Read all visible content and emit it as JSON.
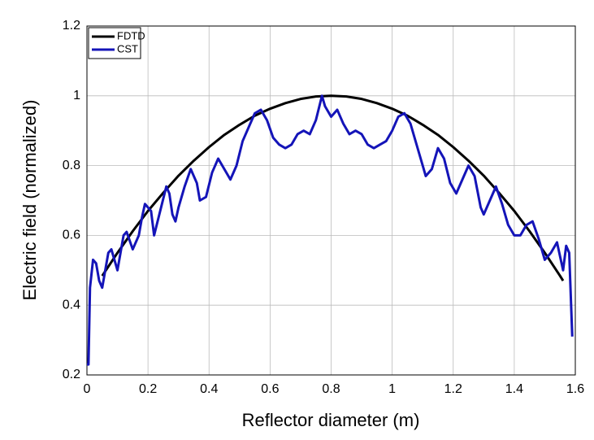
{
  "chart_data": {
    "type": "line",
    "xlabel": "Reflector diameter (m)",
    "ylabel": "Electric field (normalized)",
    "xlim": [
      0,
      1.6
    ],
    "xticks": [
      0,
      0.2,
      0.4,
      0.6,
      0.8,
      1,
      1.2,
      1.4,
      1.6
    ],
    "ylim": [
      0.2,
      1.2
    ],
    "yticks": [
      0.2,
      0.4,
      0.6,
      0.8,
      1,
      1.2
    ],
    "grid": true,
    "legend": "upper-left",
    "series": [
      {
        "name": "FDTD",
        "color": "#000000",
        "x": [
          0.05,
          0.1,
          0.15,
          0.2,
          0.25,
          0.3,
          0.35,
          0.4,
          0.45,
          0.5,
          0.55,
          0.6,
          0.65,
          0.7,
          0.75,
          0.8,
          0.85,
          0.9,
          0.95,
          1.0,
          1.05,
          1.1,
          1.15,
          1.2,
          1.25,
          1.3,
          1.35,
          1.4,
          1.45,
          1.5,
          1.55,
          1.56
        ],
        "values": [
          0.484,
          0.55,
          0.612,
          0.67,
          0.722,
          0.771,
          0.814,
          0.853,
          0.888,
          0.917,
          0.943,
          0.963,
          0.979,
          0.991,
          0.998,
          1,
          0.998,
          0.991,
          0.979,
          0.963,
          0.943,
          0.917,
          0.888,
          0.853,
          0.814,
          0.771,
          0.722,
          0.67,
          0.612,
          0.55,
          0.484,
          0.47
        ]
      },
      {
        "name": "CST",
        "color": "#1414b8",
        "x": [
          0,
          0.005,
          0.01,
          0.02,
          0.03,
          0.04,
          0.05,
          0.06,
          0.07,
          0.08,
          0.09,
          0.1,
          0.12,
          0.13,
          0.15,
          0.17,
          0.18,
          0.19,
          0.21,
          0.22,
          0.24,
          0.26,
          0.27,
          0.28,
          0.29,
          0.3,
          0.32,
          0.34,
          0.36,
          0.37,
          0.39,
          0.41,
          0.43,
          0.45,
          0.47,
          0.49,
          0.51,
          0.53,
          0.55,
          0.57,
          0.59,
          0.61,
          0.63,
          0.65,
          0.67,
          0.69,
          0.71,
          0.73,
          0.75,
          0.77,
          0.78,
          0.8,
          0.82,
          0.84,
          0.86,
          0.88,
          0.9,
          0.92,
          0.94,
          0.96,
          0.98,
          1.0,
          1.02,
          1.04,
          1.06,
          1.08,
          1.1,
          1.11,
          1.13,
          1.15,
          1.17,
          1.19,
          1.21,
          1.23,
          1.25,
          1.27,
          1.29,
          1.3,
          1.32,
          1.34,
          1.36,
          1.38,
          1.4,
          1.42,
          1.44,
          1.46,
          1.48,
          1.5,
          1.52,
          1.54,
          1.56,
          1.57,
          1.58,
          1.59
        ],
        "values": [
          0.23,
          0.23,
          0.45,
          0.53,
          0.52,
          0.47,
          0.45,
          0.5,
          0.55,
          0.56,
          0.53,
          0.5,
          0.6,
          0.61,
          0.56,
          0.6,
          0.65,
          0.69,
          0.67,
          0.6,
          0.67,
          0.74,
          0.72,
          0.66,
          0.64,
          0.68,
          0.74,
          0.79,
          0.75,
          0.7,
          0.71,
          0.78,
          0.82,
          0.79,
          0.76,
          0.8,
          0.87,
          0.91,
          0.95,
          0.96,
          0.93,
          0.88,
          0.86,
          0.85,
          0.86,
          0.89,
          0.9,
          0.89,
          0.93,
          1.0,
          0.97,
          0.94,
          0.96,
          0.92,
          0.89,
          0.9,
          0.89,
          0.86,
          0.85,
          0.86,
          0.87,
          0.9,
          0.94,
          0.95,
          0.92,
          0.86,
          0.8,
          0.77,
          0.79,
          0.85,
          0.82,
          0.75,
          0.72,
          0.76,
          0.8,
          0.77,
          0.68,
          0.66,
          0.7,
          0.74,
          0.69,
          0.63,
          0.6,
          0.6,
          0.63,
          0.64,
          0.59,
          0.53,
          0.55,
          0.58,
          0.5,
          0.57,
          0.55,
          0.31
        ]
      }
    ]
  }
}
